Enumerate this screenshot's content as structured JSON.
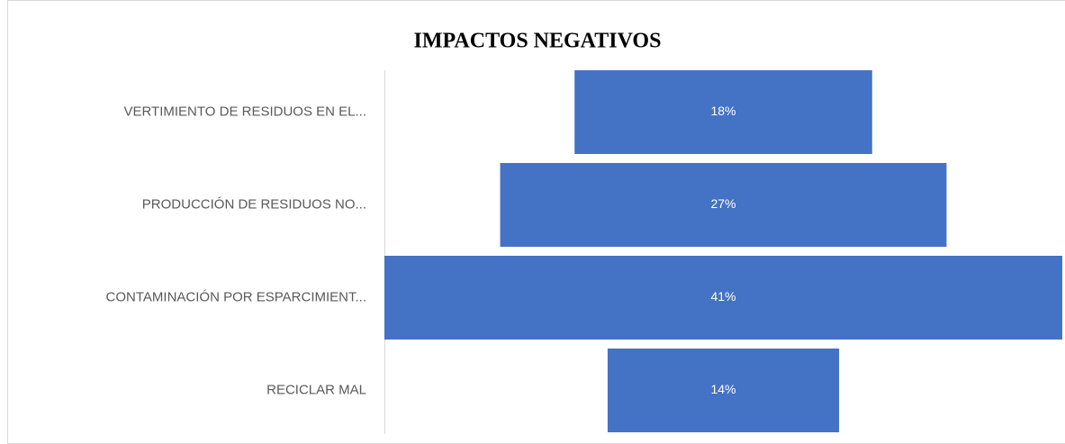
{
  "chart_data": {
    "type": "funnel",
    "title": "IMPACTOS NEGATIVOS",
    "categories": [
      "VERTIMIENTO DE RESIDUOS EN EL...",
      "PRODUCCIÓN DE RESIDUOS NO...",
      "CONTAMINACIÓN POR ESPARCIMIENT...",
      "RECICLAR MAL"
    ],
    "values": [
      18,
      27,
      41,
      14
    ],
    "value_labels": [
      "18%",
      "27%",
      "41%",
      "14%"
    ],
    "color": "#4472c4"
  }
}
